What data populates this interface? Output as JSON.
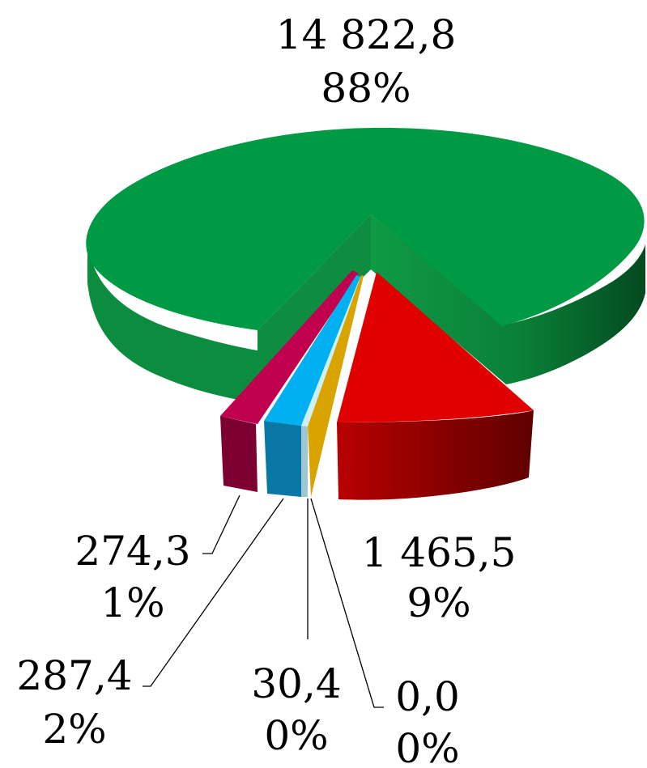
{
  "chart_data": {
    "type": "pie",
    "style": "3d-exploded",
    "title": "",
    "legend": "none",
    "slices": [
      {
        "value_label": "14 822,8",
        "percent_label": "88%",
        "value": 14822.8,
        "percent": 88,
        "color": "#009A44",
        "side_color": "#007A34"
      },
      {
        "value_label": "1 465,5",
        "percent_label": "9%",
        "value": 1465.5,
        "percent": 9,
        "color": "#E00000",
        "side_color": "#9C0000"
      },
      {
        "value_label": "0,0",
        "percent_label": "0%",
        "value": 0.0,
        "percent": 0,
        "color": "#D9A400",
        "side_color": "#B88700"
      },
      {
        "value_label": "30,4",
        "percent_label": "0%",
        "value": 30.4,
        "percent": 0,
        "color": "#CFEFF7",
        "side_color": "#9DC7D3"
      },
      {
        "value_label": "287,4",
        "percent_label": "2%",
        "value": 287.4,
        "percent": 2,
        "color": "#00B0F0",
        "side_color": "#0A78A6"
      },
      {
        "value_label": "274,3",
        "percent_label": "1%",
        "value": 274.3,
        "percent": 1,
        "color": "#C0004F",
        "side_color": "#8A003A"
      }
    ]
  }
}
